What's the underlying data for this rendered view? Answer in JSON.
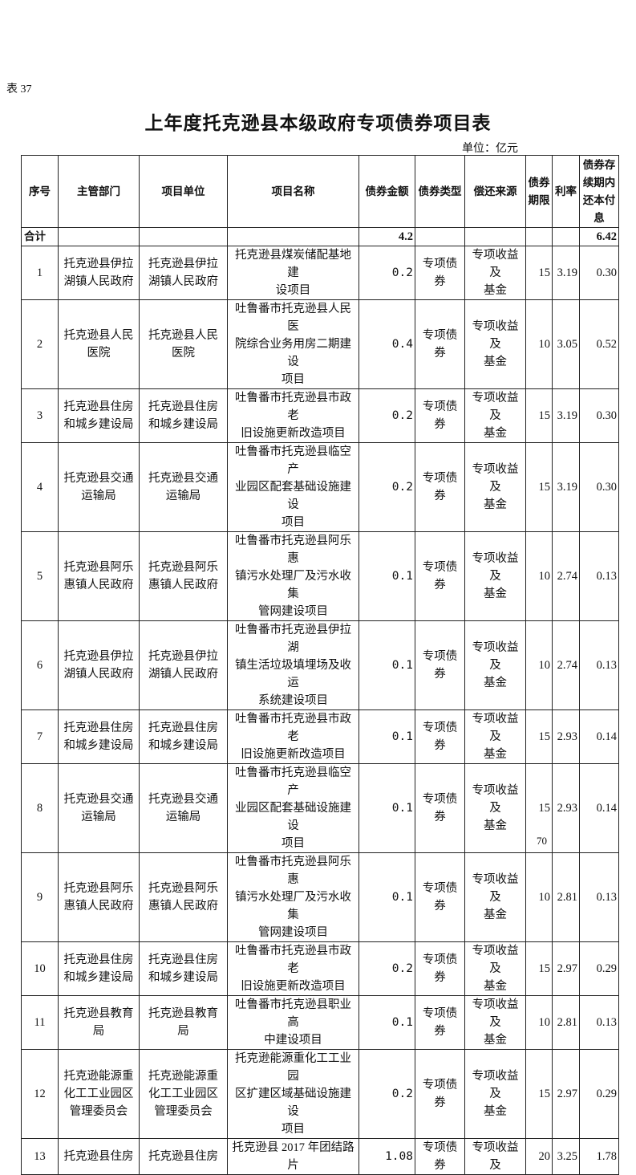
{
  "table_label": "表 37",
  "title": "上年度托克逊县本级政府专项债券项目表",
  "unit": "单位：亿元",
  "columns": [
    "序号",
    "主管部门",
    "项目单位",
    "项目名称",
    "债券金额",
    "债券类型",
    "偿还来源",
    "债券\n期限",
    "利率",
    "债券存\n续期内\n还本付\n息"
  ],
  "total": {
    "label": "合计",
    "amount": "4.2",
    "repayment": "6.42"
  },
  "rows": [
    {
      "no": "1",
      "dept": "托克逊县伊拉\n湖镇人民政府",
      "unit": "托克逊县伊拉\n湖镇人民政府",
      "name": "托克逊县煤炭储配基地建\n设项目",
      "amount": "0.2",
      "type": "专项债券",
      "source": "专项收益及\n基金",
      "term": "15",
      "rate": "3.19",
      "repay": "0.30"
    },
    {
      "no": "2",
      "dept": "托克逊县人民\n医院",
      "unit": "托克逊县人民\n医院",
      "name": "吐鲁番市托克逊县人民医\n院综合业务用房二期建设\n项目",
      "amount": "0.4",
      "type": "专项债券",
      "source": "专项收益及\n基金",
      "term": "10",
      "rate": "3.05",
      "repay": "0.52"
    },
    {
      "no": "3",
      "dept": "托克逊县住房\n和城乡建设局",
      "unit": "托克逊县住房\n和城乡建设局",
      "name": "吐鲁番市托克逊县市政老\n旧设施更新改造项目",
      "amount": "0.2",
      "type": "专项债券",
      "source": "专项收益及\n基金",
      "term": "15",
      "rate": "3.19",
      "repay": "0.30"
    },
    {
      "no": "4",
      "dept": "托克逊县交通\n运输局",
      "unit": "托克逊县交通\n运输局",
      "name": "吐鲁番市托克逊县临空产\n业园区配套基础设施建设\n项目",
      "amount": "0.2",
      "type": "专项债券",
      "source": "专项收益及\n基金",
      "term": "15",
      "rate": "3.19",
      "repay": "0.30"
    },
    {
      "no": "5",
      "dept": "托克逊县阿乐\n惠镇人民政府",
      "unit": "托克逊县阿乐\n惠镇人民政府",
      "name": "吐鲁番市托克逊县阿乐惠\n镇污水处理厂及污水收集\n管网建设项目",
      "amount": "0.1",
      "type": "专项债券",
      "source": "专项收益及\n基金",
      "term": "10",
      "rate": "2.74",
      "repay": "0.13"
    },
    {
      "no": "6",
      "dept": "托克逊县伊拉\n湖镇人民政府",
      "unit": "托克逊县伊拉\n湖镇人民政府",
      "name": "吐鲁番市托克逊县伊拉湖\n镇生活垃圾填埋场及收运\n系统建设项目",
      "amount": "0.1",
      "type": "专项债券",
      "source": "专项收益及\n基金",
      "term": "10",
      "rate": "2.74",
      "repay": "0.13"
    },
    {
      "no": "7",
      "dept": "托克逊县住房\n和城乡建设局",
      "unit": "托克逊县住房\n和城乡建设局",
      "name": "吐鲁番市托克逊县市政老\n旧设施更新改造项目",
      "amount": "0.1",
      "type": "专项债券",
      "source": "专项收益及\n基金",
      "term": "15",
      "rate": "2.93",
      "repay": "0.14"
    },
    {
      "no": "8",
      "dept": "托克逊县交通\n运输局",
      "unit": "托克逊县交通\n运输局",
      "name": "吐鲁番市托克逊县临空产\n业园区配套基础设施建设\n项目",
      "amount": "0.1",
      "type": "专项债券",
      "source": "专项收益及\n基金",
      "term": "15",
      "rate": "2.93",
      "repay": "0.14"
    },
    {
      "no": "9",
      "dept": "托克逊县阿乐\n惠镇人民政府",
      "unit": "托克逊县阿乐\n惠镇人民政府",
      "name": "吐鲁番市托克逊县阿乐惠\n镇污水处理厂及污水收集\n管网建设项目",
      "amount": "0.1",
      "type": "专项债券",
      "source": "专项收益及\n基金",
      "term": "10",
      "rate": "2.81",
      "repay": "0.13"
    },
    {
      "no": "10",
      "dept": "托克逊县住房\n和城乡建设局",
      "unit": "托克逊县住房\n和城乡建设局",
      "name": "吐鲁番市托克逊县市政老\n旧设施更新改造项目",
      "amount": "0.2",
      "type": "专项债券",
      "source": "专项收益及\n基金",
      "term": "15",
      "rate": "2.97",
      "repay": "0.29"
    },
    {
      "no": "11",
      "dept": "托克逊县教育\n局",
      "unit": "托克逊县教育\n局",
      "name": "吐鲁番市托克逊县职业高\n中建设项目",
      "amount": "0.1",
      "type": "专项债券",
      "source": "专项收益及\n基金",
      "term": "10",
      "rate": "2.81",
      "repay": "0.13"
    },
    {
      "no": "12",
      "dept": "托克逊能源重\n化工工业园区\n管理委员会",
      "unit": "托克逊能源重\n化工工业园区\n管理委员会",
      "name": "托克逊能源重化工工业园\n区扩建区域基础设施建设\n项目",
      "amount": "0.2",
      "type": "专项债券",
      "source": "专项收益及\n基金",
      "term": "15",
      "rate": "2.97",
      "repay": "0.29"
    },
    {
      "no": "13",
      "dept": "托克逊县住房",
      "unit": "托克逊县住房",
      "name": "托克逊县 2017 年团结路片",
      "amount": "1.08",
      "type": "专项债券",
      "source": "专项收益及",
      "term": "20",
      "rate": "3.25",
      "repay": "1.78"
    }
  ],
  "page_number": "70"
}
